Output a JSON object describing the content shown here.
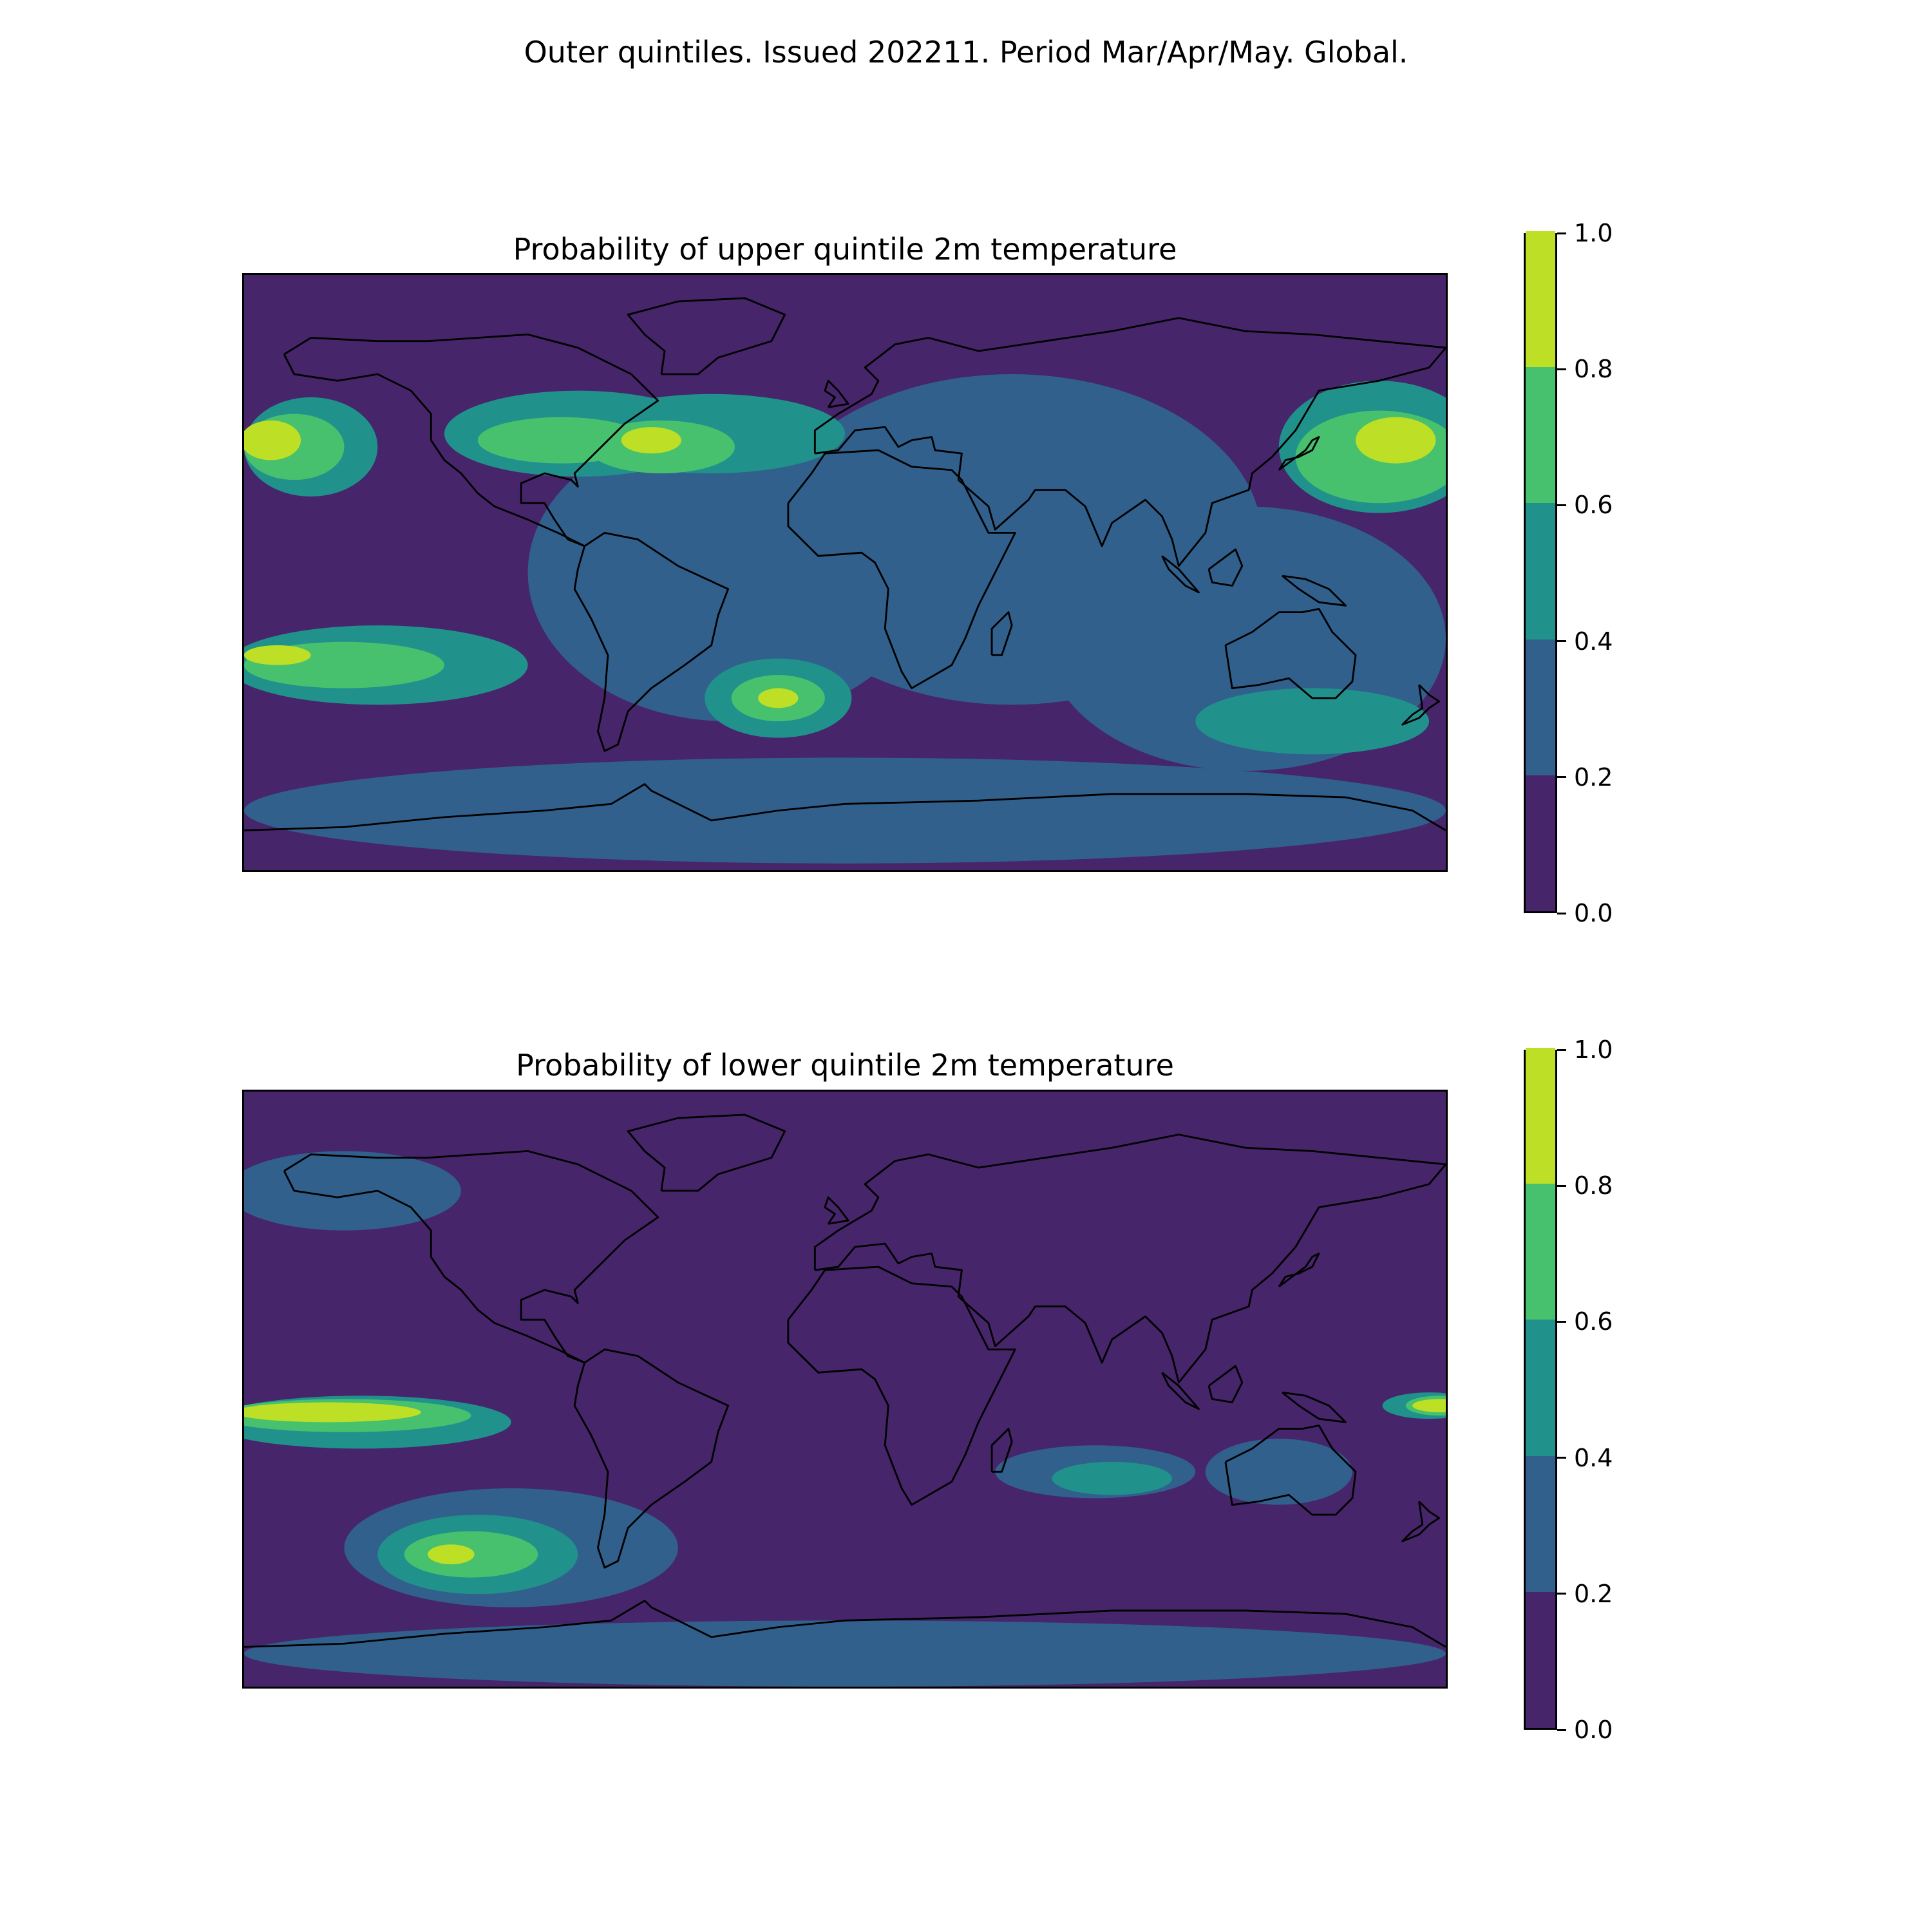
{
  "figure": {
    "suptitle": "Outer quintiles. Issued 202211. Period Mar/Apr/May. Global."
  },
  "colormap": {
    "levels": [
      0.0,
      0.2,
      0.4,
      0.6,
      0.8,
      1.0
    ],
    "colors": [
      "#46256b",
      "#31608d",
      "#21918c",
      "#47c16e",
      "#bddf26"
    ],
    "tick_labels": [
      "0.0",
      "0.2",
      "0.4",
      "0.6",
      "0.8",
      "1.0"
    ],
    "coastline_color": "#000000"
  },
  "panels": [
    {
      "title": "Probability of upper quintile 2m temperature",
      "background_color": "#46256b",
      "regions": [
        {
          "lon": -35,
          "lat": 0,
          "rlon": 60,
          "rlat": 45,
          "level": 1
        },
        {
          "lon": 50,
          "lat": 10,
          "rlon": 75,
          "rlat": 50,
          "level": 1
        },
        {
          "lon": 120,
          "lat": -20,
          "rlon": 60,
          "rlat": 40,
          "level": 1
        },
        {
          "lon": 0,
          "lat": -72,
          "rlon": 180,
          "rlat": 16,
          "level": 1
        },
        {
          "lon": -80,
          "lat": 42,
          "rlon": 40,
          "rlat": 13,
          "level": 2
        },
        {
          "lon": -40,
          "lat": 42,
          "rlon": 40,
          "rlat": 12,
          "level": 2
        },
        {
          "lon": 160,
          "lat": 38,
          "rlon": 30,
          "rlat": 20,
          "level": 2
        },
        {
          "lon": -160,
          "lat": 38,
          "rlon": 20,
          "rlat": 15,
          "level": 2
        },
        {
          "lon": -140,
          "lat": -28,
          "rlon": 45,
          "rlat": 12,
          "level": 2
        },
        {
          "lon": -20,
          "lat": -38,
          "rlon": 22,
          "rlat": 12,
          "level": 2
        },
        {
          "lon": 140,
          "lat": -45,
          "rlon": 35,
          "rlat": 10,
          "level": 2
        },
        {
          "lon": -85,
          "lat": 40,
          "rlon": 25,
          "rlat": 7,
          "level": 3
        },
        {
          "lon": -55,
          "lat": 38,
          "rlon": 22,
          "rlat": 8,
          "level": 3
        },
        {
          "lon": 160,
          "lat": 35,
          "rlon": 25,
          "rlat": 14,
          "level": 3
        },
        {
          "lon": -165,
          "lat": 38,
          "rlon": 15,
          "rlat": 10,
          "level": 3
        },
        {
          "lon": -150,
          "lat": -28,
          "rlon": 30,
          "rlat": 7,
          "level": 3
        },
        {
          "lon": -20,
          "lat": -38,
          "rlon": 14,
          "rlat": 7,
          "level": 3
        },
        {
          "lon": -58,
          "lat": 40,
          "rlon": 9,
          "rlat": 4,
          "level": 4
        },
        {
          "lon": 165,
          "lat": 40,
          "rlon": 12,
          "rlat": 7,
          "level": 4
        },
        {
          "lon": -172,
          "lat": 40,
          "rlon": 9,
          "rlat": 6,
          "level": 4
        },
        {
          "lon": -170,
          "lat": -25,
          "rlon": 10,
          "rlat": 3,
          "level": 4
        },
        {
          "lon": -20,
          "lat": -38,
          "rlon": 6,
          "rlat": 3,
          "level": 4
        }
      ],
      "colorbar_label": ""
    },
    {
      "title": "Probability of lower quintile 2m temperature",
      "background_color": "#46256b",
      "regions": [
        {
          "lon": -150,
          "lat": 60,
          "rlon": 35,
          "rlat": 12,
          "level": 1
        },
        {
          "lon": -100,
          "lat": -48,
          "rlon": 50,
          "rlat": 18,
          "level": 1
        },
        {
          "lon": 130,
          "lat": -25,
          "rlon": 22,
          "rlat": 10,
          "level": 1
        },
        {
          "lon": 75,
          "lat": -25,
          "rlon": 30,
          "rlat": 8,
          "level": 1
        },
        {
          "lon": 0,
          "lat": -80,
          "rlon": 180,
          "rlat": 10,
          "level": 1
        },
        {
          "lon": -145,
          "lat": -10,
          "rlon": 45,
          "rlat": 8,
          "level": 2
        },
        {
          "lon": -110,
          "lat": -50,
          "rlon": 30,
          "rlat": 12,
          "level": 2
        },
        {
          "lon": 80,
          "lat": -27,
          "rlon": 18,
          "rlat": 5,
          "level": 2
        },
        {
          "lon": 175,
          "lat": -5,
          "rlon": 14,
          "rlat": 4,
          "level": 2
        },
        {
          "lon": -150,
          "lat": -8,
          "rlon": 38,
          "rlat": 5,
          "level": 3
        },
        {
          "lon": -112,
          "lat": -50,
          "rlon": 20,
          "rlat": 7,
          "level": 3
        },
        {
          "lon": 178,
          "lat": -5,
          "rlon": 10,
          "rlat": 3,
          "level": 3
        },
        {
          "lon": -155,
          "lat": -7,
          "rlon": 28,
          "rlat": 3,
          "level": 4
        },
        {
          "lon": -118,
          "lat": -50,
          "rlon": 7,
          "rlat": 3,
          "level": 4
        },
        {
          "lon": 178,
          "lat": -5,
          "rlon": 8,
          "rlat": 2,
          "level": 4
        }
      ],
      "colorbar_label": ""
    }
  ]
}
